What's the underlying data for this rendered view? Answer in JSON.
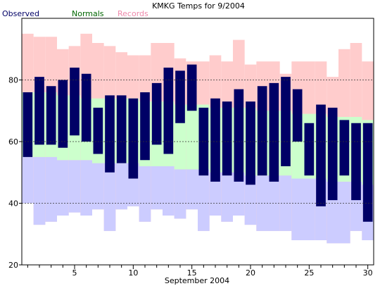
{
  "chart_data": {
    "type": "bar",
    "title": "KMKG Temps for 9/2004",
    "xlabel": "September 2004",
    "ylabel": "",
    "ylim": [
      20,
      100
    ],
    "xlim": [
      0.5,
      30.5
    ],
    "yticks": [
      20,
      40,
      60,
      80
    ],
    "xticks": [
      5,
      10,
      15,
      20,
      25,
      30
    ],
    "grid": "dashed horizontal at 40, 60, 80",
    "legend": [
      {
        "name": "Observed",
        "color": "#000066"
      },
      {
        "name": "Normals",
        "color": "#006600"
      },
      {
        "name": "Records",
        "color": "#ee88aa"
      }
    ],
    "colors": {
      "observed": "#000066",
      "normals": "#ccffcc",
      "record_high": "#ffcccc",
      "record_low": "#ccccff"
    },
    "days": [
      1,
      2,
      3,
      4,
      5,
      6,
      7,
      8,
      9,
      10,
      11,
      12,
      13,
      14,
      15,
      16,
      17,
      18,
      19,
      20,
      21,
      22,
      23,
      24,
      25,
      26,
      27,
      28,
      29,
      30
    ],
    "series": [
      {
        "name": "Records",
        "key": "record_high",
        "values": [
          95,
          94,
          94,
          90,
          91,
          95,
          92,
          91,
          89,
          88,
          88,
          92,
          92,
          87,
          86,
          86,
          88,
          86,
          93,
          85,
          86,
          86,
          82,
          86,
          86,
          86,
          81,
          90,
          92,
          86
        ]
      },
      {
        "name": "Normals",
        "key": "normal_high",
        "values": [
          76,
          76,
          76,
          75,
          75,
          74,
          74,
          74,
          74,
          74,
          73,
          73,
          73,
          72,
          72,
          72,
          71,
          71,
          71,
          71,
          70,
          70,
          70,
          69,
          69,
          69,
          68,
          68,
          68,
          67
        ]
      },
      {
        "name": "Normals",
        "key": "normal_low",
        "values": [
          55,
          55,
          55,
          54,
          54,
          54,
          53,
          53,
          53,
          53,
          52,
          52,
          52,
          51,
          51,
          51,
          50,
          50,
          50,
          49,
          49,
          49,
          49,
          48,
          48,
          48,
          47,
          47,
          47,
          46
        ]
      },
      {
        "name": "Records",
        "key": "record_low",
        "values": [
          40,
          33,
          34,
          36,
          37,
          36,
          38,
          31,
          38,
          39,
          34,
          38,
          36,
          35,
          38,
          31,
          36,
          34,
          36,
          33,
          31,
          31,
          31,
          28,
          28,
          28,
          27,
          27,
          31,
          28
        ]
      },
      {
        "name": "Observed",
        "key": "observed_high",
        "values": [
          76,
          81,
          78,
          80,
          84,
          82,
          71,
          75,
          75,
          74,
          76,
          79,
          84,
          83,
          85,
          71,
          74,
          73,
          77,
          73,
          78,
          79,
          81,
          77,
          66,
          72,
          71,
          67,
          66,
          66
        ]
      },
      {
        "name": "Observed",
        "key": "observed_low",
        "values": [
          55,
          59,
          59,
          58,
          62,
          60,
          56,
          50,
          53,
          48,
          54,
          59,
          56,
          66,
          70,
          49,
          47,
          49,
          47,
          46,
          49,
          47,
          52,
          60,
          49,
          39,
          41,
          49,
          41,
          34
        ]
      }
    ]
  }
}
